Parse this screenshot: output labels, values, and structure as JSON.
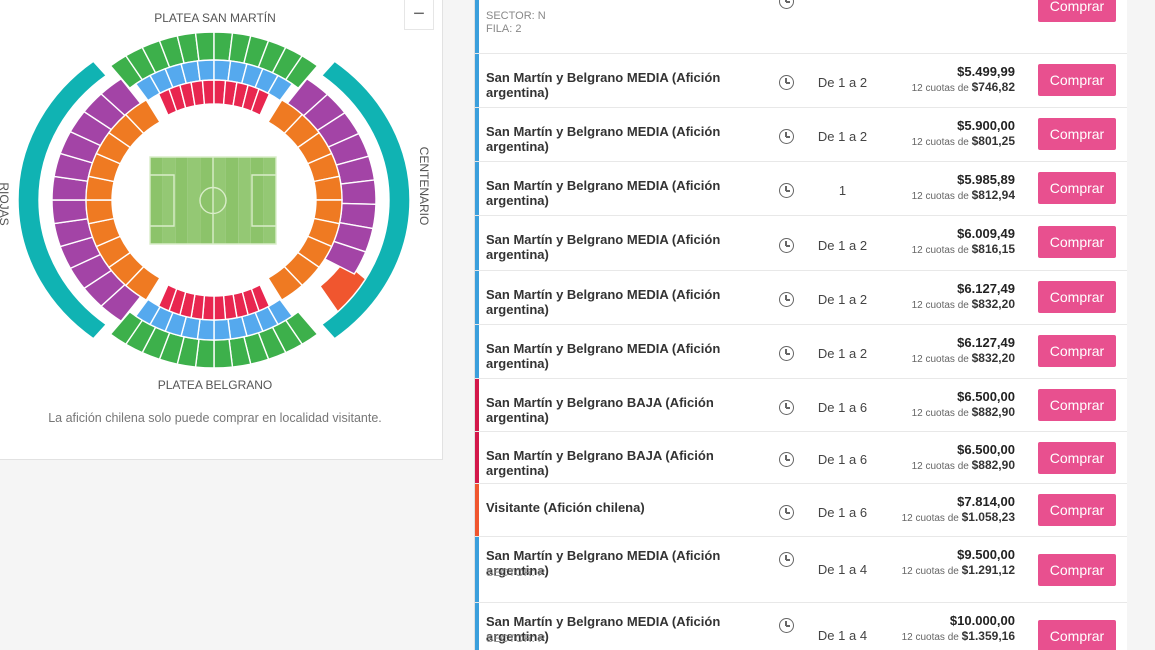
{
  "map": {
    "label_top": "PLATEA SAN MARTÍN",
    "label_bottom": "PLATEA BELGRANO",
    "label_right": "CENTENARIO",
    "label_left": "RIOJAS",
    "zoom_out_label": "−",
    "note": "La afición chilena solo puede comprar en localidad visitante.",
    "colors": {
      "field": "#8cc36a",
      "platea": "#3db04b",
      "popular": "#10b3b3",
      "baja": "#e8264f",
      "media": "#55a9ee",
      "alta": "#ef7a22",
      "cabecera": "#a344a6",
      "visitante": "#f0562f"
    }
  },
  "listing": {
    "buy_label": "Comprar",
    "cuotas_prefix": "12 cuotas de",
    "rows": [
      {
        "name": "",
        "sector": "SECTOR: N",
        "fila": "FILA: 2",
        "qty": "",
        "price": "",
        "cuota": "",
        "bar": "#3b9fdc",
        "partial": true
      },
      {
        "name": "San Martín y Belgrano MEDIA (Afición argentina)",
        "qty": "De 1 a 2",
        "price": "$5.499,99",
        "cuota": "$746,82",
        "bar": "#3b9fdc"
      },
      {
        "name": "San Martín y Belgrano MEDIA (Afición argentina)",
        "qty": "De 1 a 2",
        "price": "$5.900,00",
        "cuota": "$801,25",
        "bar": "#3b9fdc"
      },
      {
        "name": "San Martín y Belgrano MEDIA (Afición argentina)",
        "qty": "1",
        "price": "$5.985,89",
        "cuota": "$812,94",
        "bar": "#3b9fdc"
      },
      {
        "name": "San Martín y Belgrano MEDIA (Afición argentina)",
        "qty": "De 1 a 2",
        "price": "$6.009,49",
        "cuota": "$816,15",
        "bar": "#3b9fdc"
      },
      {
        "name": "San Martín y Belgrano MEDIA (Afición argentina)",
        "qty": "De 1 a 2",
        "price": "$6.127,49",
        "cuota": "$832,20",
        "bar": "#3b9fdc"
      },
      {
        "name": "San Martín y Belgrano MEDIA (Afición argentina)",
        "qty": "De 1 a 2",
        "price": "$6.127,49",
        "cuota": "$832,20",
        "bar": "#3b9fdc"
      },
      {
        "name": "San Martín y Belgrano BAJA (Afición argentina)",
        "qty": "De 1 a 6",
        "price": "$6.500,00",
        "cuota": "$882,90",
        "bar": "#d3184a"
      },
      {
        "name": "San Martín y Belgrano BAJA (Afición argentina)",
        "qty": "De 1 a 6",
        "price": "$6.500,00",
        "cuota": "$882,90",
        "bar": "#d3184a"
      },
      {
        "name": "Visitante (Afición chilena)",
        "qty": "De 1 a 6",
        "price": "$7.814,00",
        "cuota": "$1.058,23",
        "bar": "#f0562f"
      },
      {
        "name": "San Martín y Belgrano MEDIA (Afición argentina)",
        "sector": "SECTOR: P",
        "qty": "De 1 a 4",
        "price": "$9.500,00",
        "cuota": "$1.291,12",
        "bar": "#3b9fdc"
      },
      {
        "name": "San Martín y Belgrano MEDIA (Afición argentina)",
        "sector": "SECTOR: P",
        "qty": "De 1 a 4",
        "price": "$10.000,00",
        "cuota": "$1.359,16",
        "bar": "#3b9fdc"
      }
    ]
  }
}
